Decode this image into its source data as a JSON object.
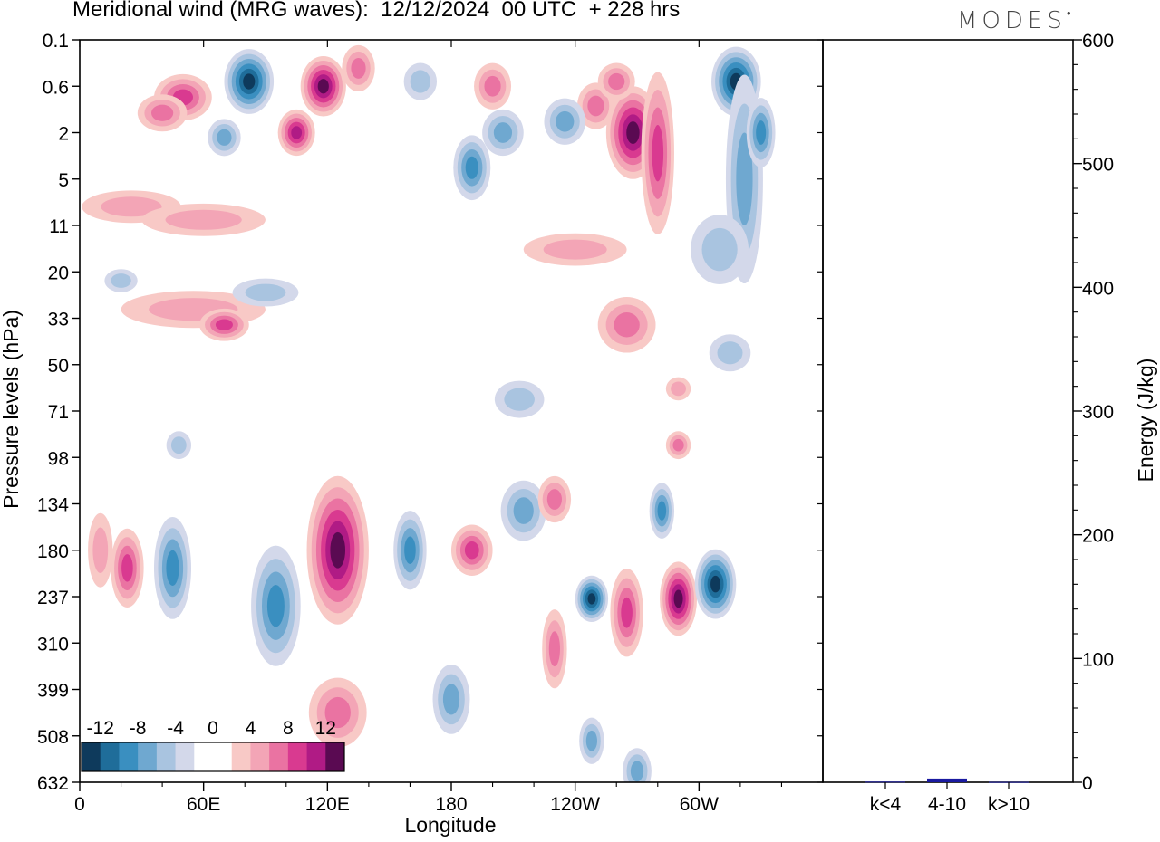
{
  "title": "Meridional wind (MRG waves):  12/12/2024  00 UTC  + 228 hrs",
  "brand": "MODES",
  "chart_data": [
    {
      "type": "heatmap",
      "name": "meridional-wind-section",
      "xlabel": "Longitude",
      "ylabel": "Pressure levels (hPa)",
      "x_ticks": [
        "0",
        "60E",
        "120E",
        "180",
        "120W",
        "60W"
      ],
      "y_ticks": [
        "0.1",
        "0.6",
        "2",
        "5",
        "11",
        "20",
        "33",
        "50",
        "71",
        "98",
        "134",
        "180",
        "237",
        "310",
        "399",
        "508",
        "632"
      ],
      "colorbar_labels": [
        "-12",
        "-8",
        "-4",
        "0",
        "4",
        "8",
        "12"
      ],
      "colors": [
        "#0e3a5c",
        "#1f6d9a",
        "#3a8fc0",
        "#6fa8d0",
        "#a9c4e0",
        "#d3d8ea",
        "#ffffff",
        "#ffffff",
        "#f8c9c6",
        "#f3a5b6",
        "#ea73a2",
        "#d93a90",
        "#b01b85",
        "#5a0a52"
      ],
      "features": [
        {
          "lon": 82,
          "lev": 0.5,
          "w": 12,
          "h": 1.4,
          "v": -14
        },
        {
          "lon": 118,
          "lev": 0.6,
          "w": 11,
          "h": 1.3,
          "v": 12
        },
        {
          "lon": 135,
          "lev": 0.3,
          "w": 8,
          "h": 1.0,
          "v": 6
        },
        {
          "lon": 105,
          "lev": 2.0,
          "w": 9,
          "h": 1.0,
          "v": 9
        },
        {
          "lon": 50,
          "lev": 0.8,
          "w": 14,
          "h": 1.0,
          "v": 7
        },
        {
          "lon": 40,
          "lev": 1.2,
          "w": 12,
          "h": 0.8,
          "v": 5
        },
        {
          "lon": 70,
          "lev": 2.2,
          "w": 8,
          "h": 0.8,
          "v": -5
        },
        {
          "lon": 165,
          "lev": 0.5,
          "w": 8,
          "h": 0.8,
          "v": -4
        },
        {
          "lon": 200,
          "lev": 0.6,
          "w": 9,
          "h": 1.0,
          "v": 6
        },
        {
          "lon": 205,
          "lev": 2.0,
          "w": 10,
          "h": 1.0,
          "v": -6
        },
        {
          "lon": 190,
          "lev": 4.0,
          "w": 9,
          "h": 1.4,
          "v": -8
        },
        {
          "lon": 250,
          "lev": 1.0,
          "w": 9,
          "h": 1.0,
          "v": 6
        },
        {
          "lon": 268,
          "lev": 2.0,
          "w": 13,
          "h": 2.0,
          "v": 13
        },
        {
          "lon": 280,
          "lev": 3.0,
          "w": 8,
          "h": 3.5,
          "v": 8
        },
        {
          "lon": 235,
          "lev": 1.5,
          "w": 10,
          "h": 1.0,
          "v": -5
        },
        {
          "lon": 318,
          "lev": 0.5,
          "w": 12,
          "h": 1.5,
          "v": -14
        },
        {
          "lon": 322,
          "lev": 5.0,
          "w": 9,
          "h": 4.5,
          "v": -6
        },
        {
          "lon": 330,
          "lev": 2.0,
          "w": 7,
          "h": 1.5,
          "v": -7
        },
        {
          "lon": 260,
          "lev": 0.5,
          "w": 9,
          "h": 0.8,
          "v": 5
        },
        {
          "lon": 25,
          "lev": 8.0,
          "w": 24,
          "h": 0.7,
          "v": 3
        },
        {
          "lon": 60,
          "lev": 10.0,
          "w": 30,
          "h": 0.7,
          "v": 3
        },
        {
          "lon": 55,
          "lev": 30.0,
          "w": 35,
          "h": 0.8,
          "v": 4
        },
        {
          "lon": 70,
          "lev": 35.0,
          "w": 12,
          "h": 0.7,
          "v": 8
        },
        {
          "lon": 90,
          "lev": 25.0,
          "w": 16,
          "h": 0.6,
          "v": -4
        },
        {
          "lon": 20,
          "lev": 22.0,
          "w": 8,
          "h": 0.5,
          "v": -4
        },
        {
          "lon": 240,
          "lev": 15.0,
          "w": 25,
          "h": 0.7,
          "v": 4
        },
        {
          "lon": 265,
          "lev": 35.0,
          "w": 14,
          "h": 1.2,
          "v": 5
        },
        {
          "lon": 310,
          "lev": 15.0,
          "w": 14,
          "h": 1.5,
          "v": -4
        },
        {
          "lon": 315,
          "lev": 45.0,
          "w": 10,
          "h": 0.8,
          "v": -4
        },
        {
          "lon": 23,
          "lev": 200.0,
          "w": 8,
          "h": 1.7,
          "v": 7
        },
        {
          "lon": 10,
          "lev": 180.0,
          "w": 6,
          "h": 1.6,
          "v": 4
        },
        {
          "lon": 45,
          "lev": 200.0,
          "w": 9,
          "h": 2.2,
          "v": -8
        },
        {
          "lon": 48,
          "lev": 90.0,
          "w": 6,
          "h": 0.6,
          "v": -4
        },
        {
          "lon": 95,
          "lev": 250.0,
          "w": 12,
          "h": 2.6,
          "v": -8
        },
        {
          "lon": 125,
          "lev": 180.0,
          "w": 15,
          "h": 3.2,
          "v": 12
        },
        {
          "lon": 125,
          "lev": 450.0,
          "w": 14,
          "h": 1.5,
          "v": 6
        },
        {
          "lon": 160,
          "lev": 180.0,
          "w": 8,
          "h": 1.7,
          "v": -8
        },
        {
          "lon": 180,
          "lev": 420.0,
          "w": 9,
          "h": 1.5,
          "v": -5
        },
        {
          "lon": 190,
          "lev": 180.0,
          "w": 10,
          "h": 1.1,
          "v": 7
        },
        {
          "lon": 215,
          "lev": 140.0,
          "w": 11,
          "h": 1.3,
          "v": -6
        },
        {
          "lon": 230,
          "lev": 320.0,
          "w": 6,
          "h": 1.7,
          "v": 6
        },
        {
          "lon": 248,
          "lev": 240.0,
          "w": 8,
          "h": 1.0,
          "v": -11
        },
        {
          "lon": 248,
          "lev": 520.0,
          "w": 6,
          "h": 1.0,
          "v": -6
        },
        {
          "lon": 265,
          "lev": 260.0,
          "w": 8,
          "h": 1.9,
          "v": 7
        },
        {
          "lon": 282,
          "lev": 140.0,
          "w": 6,
          "h": 1.2,
          "v": -7
        },
        {
          "lon": 290,
          "lev": 240.0,
          "w": 9,
          "h": 1.6,
          "v": 15
        },
        {
          "lon": 308,
          "lev": 220.0,
          "w": 10,
          "h": 1.5,
          "v": -13
        },
        {
          "lon": 290,
          "lev": 90.0,
          "w": 6,
          "h": 0.6,
          "v": 6
        },
        {
          "lon": 290,
          "lev": 60.0,
          "w": 6,
          "h": 0.5,
          "v": 4
        },
        {
          "lon": 213,
          "lev": 65.0,
          "w": 12,
          "h": 0.8,
          "v": -4
        },
        {
          "lon": 230,
          "lev": 130.0,
          "w": 8,
          "h": 1.0,
          "v": 5
        },
        {
          "lon": 270,
          "lev": 600.0,
          "w": 7,
          "h": 1.0,
          "v": -5
        }
      ]
    },
    {
      "type": "bar",
      "name": "energy-by-wavenumber",
      "categories": [
        "k<4",
        "4-10",
        "k>10"
      ],
      "values": [
        0.5,
        3,
        0.3
      ],
      "ylabel": "Energy (J/kg)",
      "ylim": [
        0,
        600
      ],
      "y_ticks": [
        "0",
        "100",
        "200",
        "300",
        "400",
        "500",
        "600"
      ],
      "bar_color": "#1a1aa0"
    }
  ]
}
